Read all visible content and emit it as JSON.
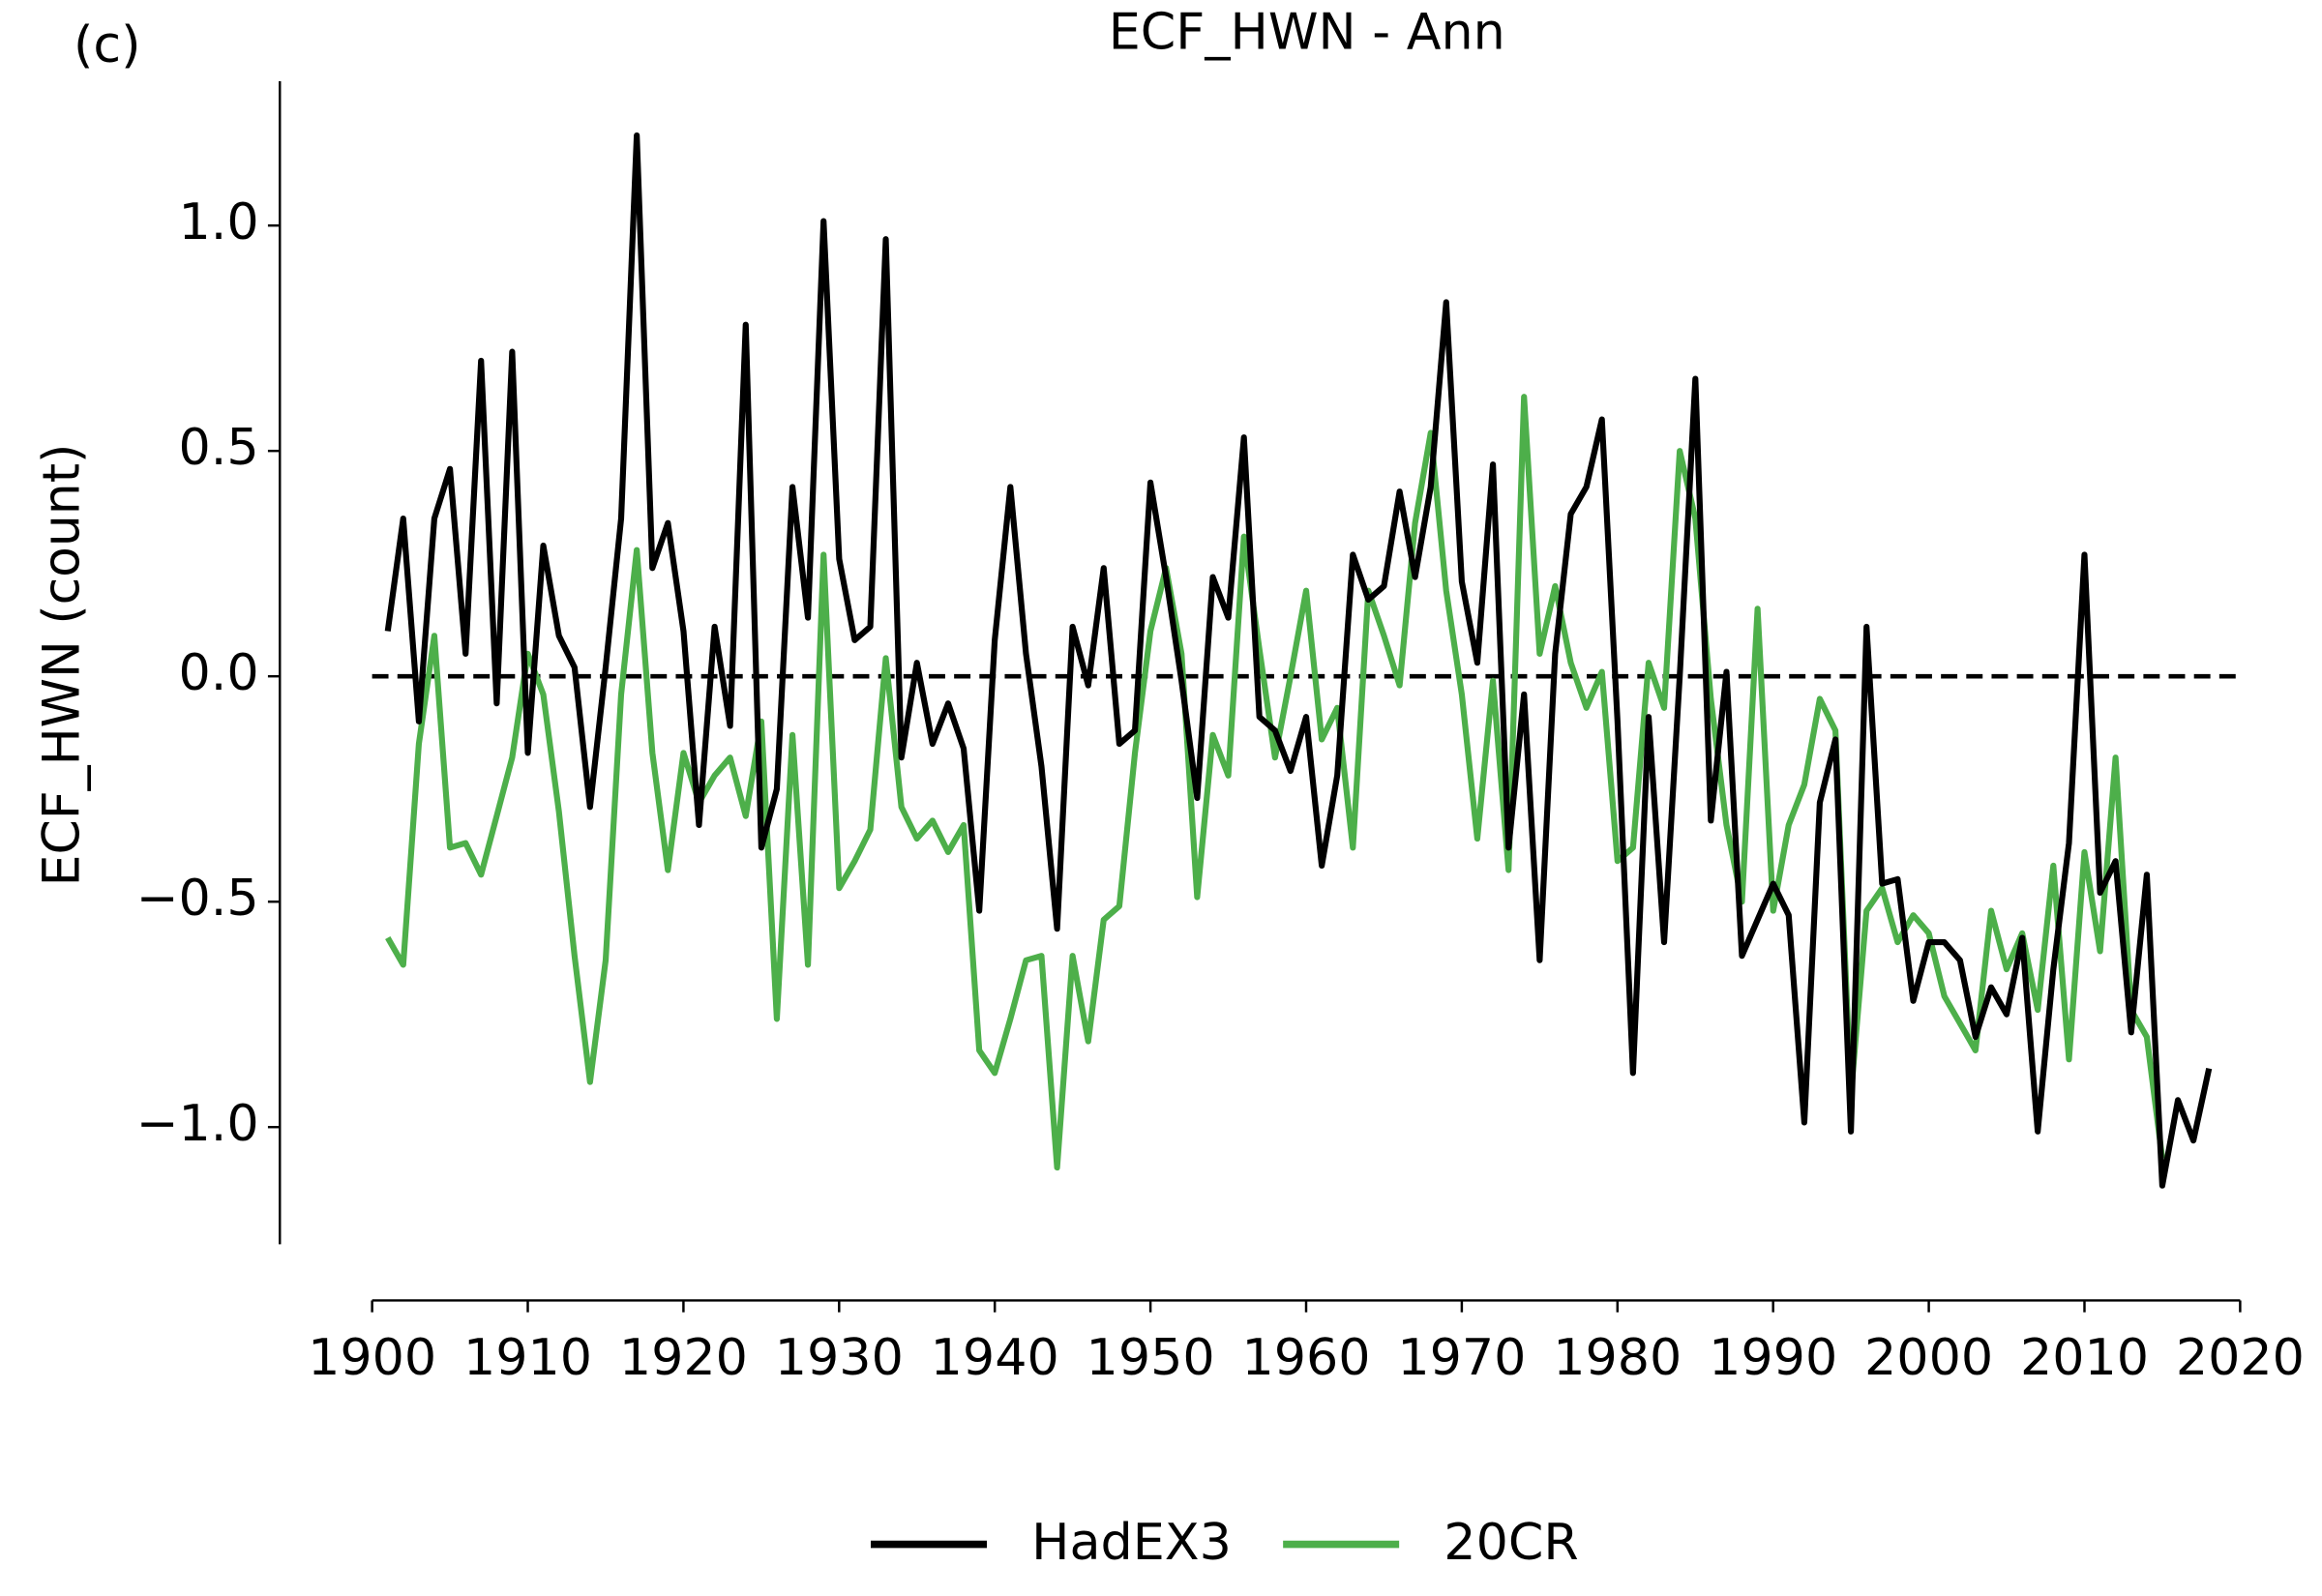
{
  "chart_data": {
    "type": "line",
    "panel_label": "(c)",
    "title": "ECF_HWN - Ann",
    "y_label": "ECF_HWN (count)",
    "x": [
      1901,
      1902,
      1903,
      1904,
      1905,
      1906,
      1907,
      1908,
      1909,
      1910,
      1911,
      1912,
      1913,
      1914,
      1915,
      1916,
      1917,
      1918,
      1919,
      1920,
      1921,
      1922,
      1923,
      1924,
      1925,
      1926,
      1927,
      1928,
      1929,
      1930,
      1931,
      1932,
      1933,
      1934,
      1935,
      1936,
      1937,
      1938,
      1939,
      1940,
      1941,
      1942,
      1943,
      1944,
      1945,
      1946,
      1947,
      1948,
      1949,
      1950,
      1951,
      1952,
      1953,
      1954,
      1955,
      1956,
      1957,
      1958,
      1959,
      1960,
      1961,
      1962,
      1963,
      1964,
      1965,
      1966,
      1967,
      1968,
      1969,
      1970,
      1971,
      1972,
      1973,
      1974,
      1975,
      1976,
      1977,
      1978,
      1979,
      1980,
      1981,
      1982,
      1983,
      1984,
      1985,
      1986,
      1987,
      1988,
      1989,
      1990,
      1991,
      1992,
      1993,
      1994,
      1995,
      1996,
      1997,
      1998,
      1999,
      2000,
      2001,
      2002,
      2003,
      2004,
      2005,
      2006,
      2007,
      2008,
      2009,
      2010,
      2011,
      2012,
      2013,
      2014,
      2015,
      2016,
      2017,
      2018
    ],
    "series": [
      {
        "name": "HadEX3",
        "color": "#000000",
        "values": [
          0.1,
          0.35,
          -0.1,
          0.35,
          0.46,
          0.05,
          0.7,
          -0.06,
          0.72,
          -0.17,
          0.29,
          0.09,
          0.02,
          -0.29,
          0.02,
          0.35,
          1.2,
          0.24,
          0.34,
          0.1,
          -0.33,
          0.11,
          -0.11,
          0.78,
          -0.38,
          -0.25,
          0.42,
          0.13,
          1.01,
          0.26,
          0.08,
          0.11,
          0.97,
          -0.18,
          0.03,
          -0.15,
          -0.06,
          -0.16,
          -0.52,
          0.08,
          0.42,
          0.05,
          -0.2,
          -0.56,
          0.11,
          -0.02,
          0.24,
          -0.15,
          -0.12,
          0.43,
          0.22,
          -0.01,
          -0.27,
          0.22,
          0.13,
          0.53,
          -0.09,
          -0.12,
          -0.21,
          -0.09,
          -0.42,
          -0.22,
          0.27,
          0.17,
          0.2,
          0.41,
          0.22,
          0.42,
          0.83,
          0.21,
          0.03,
          0.47,
          -0.38,
          -0.04,
          -0.63,
          0.05,
          0.36,
          0.42,
          0.57,
          -0.1,
          -0.88,
          -0.09,
          -0.59,
          0.0,
          0.66,
          -0.32,
          0.01,
          -0.62,
          -0.54,
          -0.46,
          -0.53,
          -0.99,
          -0.28,
          -0.14,
          -1.01,
          0.11,
          -0.46,
          -0.45,
          -0.72,
          -0.59,
          -0.59,
          -0.63,
          -0.8,
          -0.69,
          -0.75,
          -0.58,
          -1.01,
          -0.65,
          -0.37,
          0.27,
          -0.48,
          -0.41,
          -0.79,
          -0.44,
          -1.13,
          -0.94,
          -1.03,
          -0.87
        ]
      },
      {
        "name": "20CR",
        "color": "#4daf4a",
        "values": [
          -0.58,
          -0.64,
          -0.15,
          0.09,
          -0.38,
          -0.37,
          -0.44,
          -0.31,
          -0.18,
          0.05,
          -0.04,
          -0.3,
          -0.62,
          -0.9,
          -0.63,
          -0.04,
          0.28,
          -0.17,
          -0.43,
          -0.17,
          -0.28,
          -0.22,
          -0.18,
          -0.31,
          -0.1,
          -0.76,
          -0.13,
          -0.64,
          0.27,
          -0.47,
          -0.41,
          -0.34,
          0.04,
          -0.29,
          -0.36,
          -0.32,
          -0.39,
          -0.33,
          -0.83,
          -0.88,
          -0.76,
          -0.63,
          -0.62,
          -1.09,
          -0.62,
          -0.81,
          -0.54,
          -0.51,
          -0.17,
          0.1,
          0.24,
          0.05,
          -0.49,
          -0.13,
          -0.22,
          0.31,
          0.06,
          -0.18,
          0.0,
          0.19,
          -0.14,
          -0.07,
          -0.38,
          0.19,
          0.09,
          -0.02,
          0.34,
          0.54,
          0.19,
          -0.04,
          -0.36,
          -0.01,
          -0.43,
          0.62,
          0.05,
          0.2,
          0.03,
          -0.07,
          0.01,
          -0.41,
          -0.38,
          0.03,
          -0.07,
          0.5,
          0.35,
          -0.05,
          -0.33,
          -0.5,
          0.15,
          -0.52,
          -0.33,
          -0.24,
          -0.05,
          -0.12,
          -0.93,
          -0.52,
          -0.47,
          -0.59,
          -0.53,
          -0.57,
          -0.71,
          -0.77,
          -0.83,
          -0.52,
          -0.65,
          -0.57,
          -0.74,
          -0.42,
          -0.85,
          -0.39,
          -0.61,
          -0.18,
          -0.74,
          -0.8,
          -1.07,
          null,
          null,
          null
        ]
      }
    ],
    "reference_line": 0,
    "xlim": [
      1900,
      2020
    ],
    "ylim": [
      -1.26,
      1.32
    ],
    "xticks": [
      1900,
      1910,
      1920,
      1930,
      1940,
      1950,
      1960,
      1970,
      1980,
      1990,
      2000,
      2010,
      2020
    ],
    "yticks": [
      {
        "value": -1.0,
        "label": "−1.0"
      },
      {
        "value": -0.5,
        "label": "−0.5"
      },
      {
        "value": 0.0,
        "label": "0.0"
      },
      {
        "value": 0.5,
        "label": "0.5"
      },
      {
        "value": 1.0,
        "label": "1.0"
      }
    ],
    "legend": "bottom"
  }
}
